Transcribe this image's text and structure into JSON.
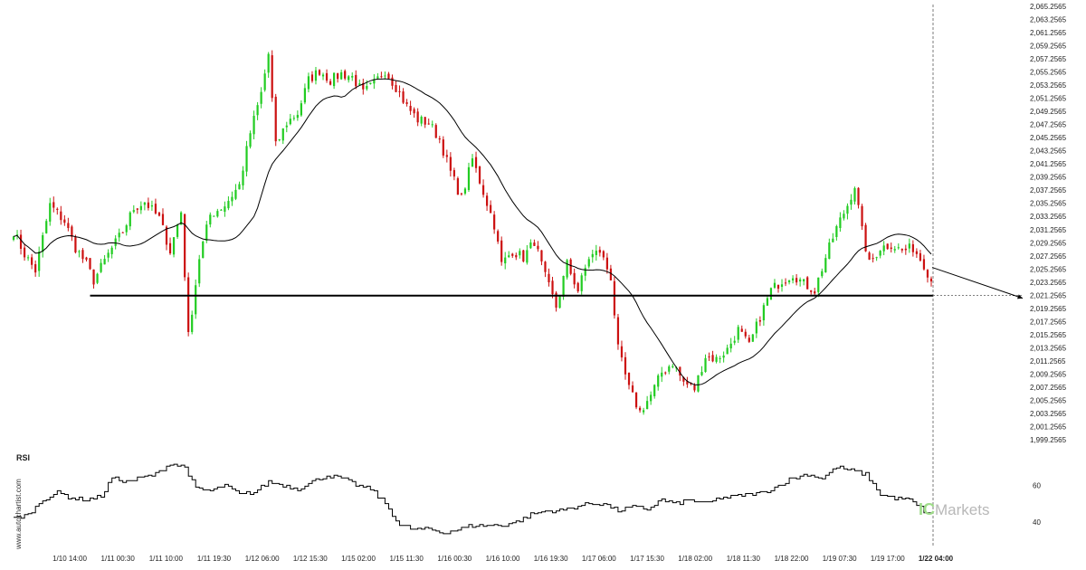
{
  "chart_data": {
    "type": "candlestick",
    "colors": {
      "up": "#22cc22",
      "down": "#cc1111",
      "ma": "#000000",
      "level": "#000000",
      "rsi": "#000000"
    },
    "price_axis": {
      "min": 1999.2565,
      "max": 2065.2565,
      "ticks": [
        "2,065.2565",
        "2,063.2565",
        "2,061.2565",
        "2,059.2565",
        "2,057.2565",
        "2,055.2565",
        "2,053.2565",
        "2,051.2565",
        "2,049.2565",
        "2,047.2565",
        "2,045.2565",
        "2,043.2565",
        "2,041.2565",
        "2,039.2565",
        "2,037.2565",
        "2,035.2565",
        "2,033.2565",
        "2,031.2565",
        "2,029.2565",
        "2,027.2565",
        "2,025.2565",
        "2,023.2565",
        "2,021.2565",
        "2,019.2565",
        "2,017.2565",
        "2,015.2565",
        "2,013.2565",
        "2,011.2565",
        "2,009.2565",
        "2,007.2565",
        "2,005.2565",
        "2,003.2565",
        "2,001.2565",
        "1,999.2565"
      ]
    },
    "x_labels": [
      "1/10 14:00",
      "1/11 00:30",
      "1/11 10:00",
      "1/11 19:30",
      "1/12 06:00",
      "1/12 15:30",
      "1/15 02:00",
      "1/15 11:30",
      "1/16 00:30",
      "1/16 10:00",
      "1/16 19:30",
      "1/17 06:00",
      "1/17 15:30",
      "1/18 02:00",
      "1/18 11:30",
      "1/18 22:00",
      "1/19 07:30",
      "1/19 17:00",
      "1/22 04:00"
    ],
    "x_label_highlight": "1/22 04:00",
    "anchors": [
      [
        0,
        2031.0
      ],
      [
        3,
        2027.5
      ],
      [
        6,
        2025.0
      ],
      [
        10,
        2035.0
      ],
      [
        14,
        2032.5
      ],
      [
        17,
        2028.5
      ],
      [
        20,
        2026.0
      ],
      [
        22,
        2023.5
      ],
      [
        26,
        2027.5
      ],
      [
        30,
        2031.0
      ],
      [
        33,
        2034.5
      ],
      [
        36,
        2035.5
      ],
      [
        40,
        2033.0
      ],
      [
        43,
        2028.0
      ],
      [
        46,
        2034.0
      ],
      [
        48,
        2015.0
      ],
      [
        51,
        2027.0
      ],
      [
        54,
        2033.5
      ],
      [
        58,
        2035.0
      ],
      [
        62,
        2038.0
      ],
      [
        65,
        2046.0
      ],
      [
        68,
        2052.0
      ],
      [
        70,
        2058.0
      ],
      [
        72,
        2044.0
      ],
      [
        75,
        2047.5
      ],
      [
        78,
        2049.0
      ],
      [
        81,
        2054.0
      ],
      [
        84,
        2055.5
      ],
      [
        87,
        2054.0
      ],
      [
        90,
        2055.0
      ],
      [
        93,
        2054.5
      ],
      [
        96,
        2052.0
      ],
      [
        99,
        2053.5
      ],
      [
        102,
        2055.5
      ],
      [
        105,
        2053.0
      ],
      [
        108,
        2050.0
      ],
      [
        111,
        2048.0
      ],
      [
        114,
        2047.5
      ],
      [
        117,
        2045.0
      ],
      [
        120,
        2040.0
      ],
      [
        123,
        2036.0
      ],
      [
        126,
        2042.0
      ],
      [
        129,
        2037.0
      ],
      [
        132,
        2032.0
      ],
      [
        134,
        2026.0
      ],
      [
        137,
        2028.0
      ],
      [
        140,
        2027.0
      ],
      [
        143,
        2029.5
      ],
      [
        146,
        2024.0
      ],
      [
        149,
        2019.5
      ],
      [
        152,
        2026.0
      ],
      [
        155,
        2022.0
      ],
      [
        158,
        2027.0
      ],
      [
        161,
        2028.0
      ],
      [
        164,
        2024.0
      ],
      [
        166,
        2013.0
      ],
      [
        169,
        2007.0
      ],
      [
        172,
        2003.5
      ],
      [
        175,
        2006.0
      ],
      [
        178,
        2009.5
      ],
      [
        181,
        2011.0
      ],
      [
        184,
        2008.0
      ],
      [
        187,
        2007.0
      ],
      [
        190,
        2012.0
      ],
      [
        193,
        2011.5
      ],
      [
        196,
        2013.0
      ],
      [
        199,
        2016.0
      ],
      [
        202,
        2013.5
      ],
      [
        205,
        2018.0
      ],
      [
        208,
        2022.0
      ],
      [
        211,
        2023.5
      ],
      [
        214,
        2024.5
      ],
      [
        217,
        2023.0
      ],
      [
        220,
        2022.0
      ],
      [
        223,
        2027.0
      ],
      [
        226,
        2031.5
      ],
      [
        229,
        2035.0
      ],
      [
        231,
        2038.0
      ],
      [
        233,
        2031.0
      ],
      [
        235,
        2026.0
      ],
      [
        238,
        2028.5
      ],
      [
        241,
        2029.0
      ],
      [
        244,
        2028.0
      ],
      [
        247,
        2028.5
      ],
      [
        250,
        2026.0
      ],
      [
        252,
        2023.5
      ]
    ],
    "level": {
      "value": 2021.2,
      "from_index": 21
    },
    "projection": {
      "from_index": 252,
      "from_value": 2025.5,
      "to_value": 2020.8
    },
    "rsi": {
      "label": "RSI",
      "ticks": [
        60,
        40
      ],
      "min": 30,
      "max": 78,
      "anchors": [
        [
          0,
          42
        ],
        [
          4,
          44
        ],
        [
          8,
          52
        ],
        [
          12,
          56
        ],
        [
          16,
          53
        ],
        [
          20,
          52
        ],
        [
          24,
          54
        ],
        [
          27,
          64
        ],
        [
          31,
          62
        ],
        [
          35,
          64
        ],
        [
          39,
          66
        ],
        [
          43,
          72
        ],
        [
          47,
          70
        ],
        [
          50,
          58
        ],
        [
          54,
          57
        ],
        [
          58,
          60
        ],
        [
          62,
          55
        ],
        [
          66,
          56
        ],
        [
          70,
          62
        ],
        [
          74,
          60
        ],
        [
          78,
          58
        ],
        [
          82,
          62
        ],
        [
          86,
          65
        ],
        [
          90,
          64
        ],
        [
          94,
          60
        ],
        [
          98,
          58
        ],
        [
          102,
          50
        ],
        [
          106,
          38
        ],
        [
          110,
          36
        ],
        [
          114,
          36
        ],
        [
          118,
          34
        ],
        [
          122,
          36
        ],
        [
          126,
          38
        ],
        [
          130,
          38
        ],
        [
          134,
          38
        ],
        [
          138,
          40
        ],
        [
          142,
          44
        ],
        [
          146,
          46
        ],
        [
          150,
          46
        ],
        [
          154,
          48
        ],
        [
          158,
          50
        ],
        [
          162,
          50
        ],
        [
          166,
          46
        ],
        [
          170,
          48
        ],
        [
          174,
          47
        ],
        [
          178,
          52
        ],
        [
          182,
          50
        ],
        [
          186,
          52
        ],
        [
          190,
          50
        ],
        [
          194,
          53
        ],
        [
          198,
          54
        ],
        [
          202,
          55
        ],
        [
          206,
          56
        ],
        [
          210,
          60
        ],
        [
          214,
          64
        ],
        [
          218,
          66
        ],
        [
          222,
          64
        ],
        [
          226,
          70
        ],
        [
          230,
          68
        ],
        [
          234,
          66
        ],
        [
          238,
          55
        ],
        [
          242,
          53
        ],
        [
          246,
          52
        ],
        [
          250,
          46
        ],
        [
          252,
          44
        ]
      ]
    }
  },
  "watermark": {
    "site": "www.autochartist.com",
    "brand_prefix": "IC",
    "brand_name": "Markets"
  }
}
